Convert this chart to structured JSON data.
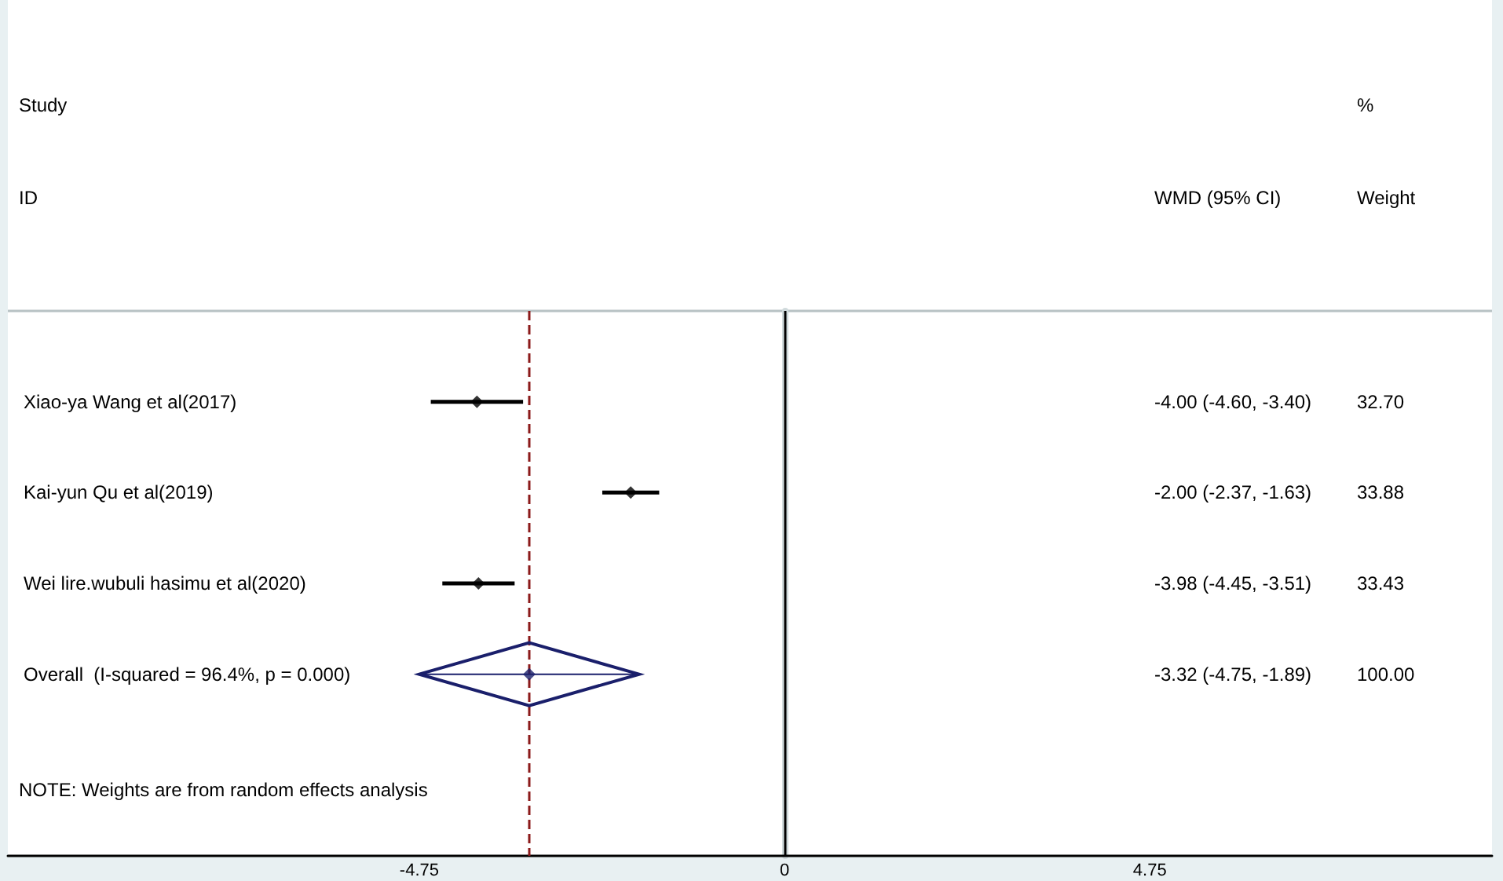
{
  "chart_data": {
    "type": "scatter",
    "orientation": "horizontal",
    "categories": [
      "Xiao-ya Wang et al(2017)",
      "Kai-yun Qu et al(2019)",
      "Wei lire.wubuli hasimu et al(2020)",
      "Overall  (I-squared = 96.4%, p = 0.000)"
    ],
    "series": [
      {
        "color": "#000000",
        "marker": "diamond",
        "values": [
          -4.0,
          -2.0,
          -3.98,
          null
        ],
        "errors": [
          [
            -4.6,
            -3.4
          ],
          [
            -2.37,
            -1.63
          ],
          [
            -4.45,
            -3.51
          ],
          null
        ]
      },
      {
        "color": "#1a1f6b",
        "marker": "diamond",
        "values": [
          null,
          null,
          null,
          -3.32
        ],
        "errors": [
          null,
          null,
          null,
          [
            -4.75,
            -1.89
          ]
        ]
      }
    ],
    "xlim": [
      -10.1,
      9.2
    ],
    "xticks": [
      -4.75,
      0,
      4.75
    ],
    "ref_lines": [
      {
        "axis": "x",
        "value": 0,
        "color": "#000000",
        "line_style": "solid"
      },
      {
        "axis": "x",
        "value": -3.32,
        "color": "#8b1a1a",
        "line_style": "dashed"
      }
    ],
    "annotations": [
      "Study",
      "ID",
      "WMD (95% CI)",
      "%",
      "Weight",
      "-4.00 (-4.60, -3.40)",
      "32.70",
      "-2.00 (-2.37, -1.63)",
      "33.88",
      "-3.98 (-4.45, -3.51)",
      "33.43",
      "-3.32 (-4.75, -1.89)",
      "100.00",
      "NOTE: Weights are from random effects analysis"
    ],
    "grid": false
  }
}
